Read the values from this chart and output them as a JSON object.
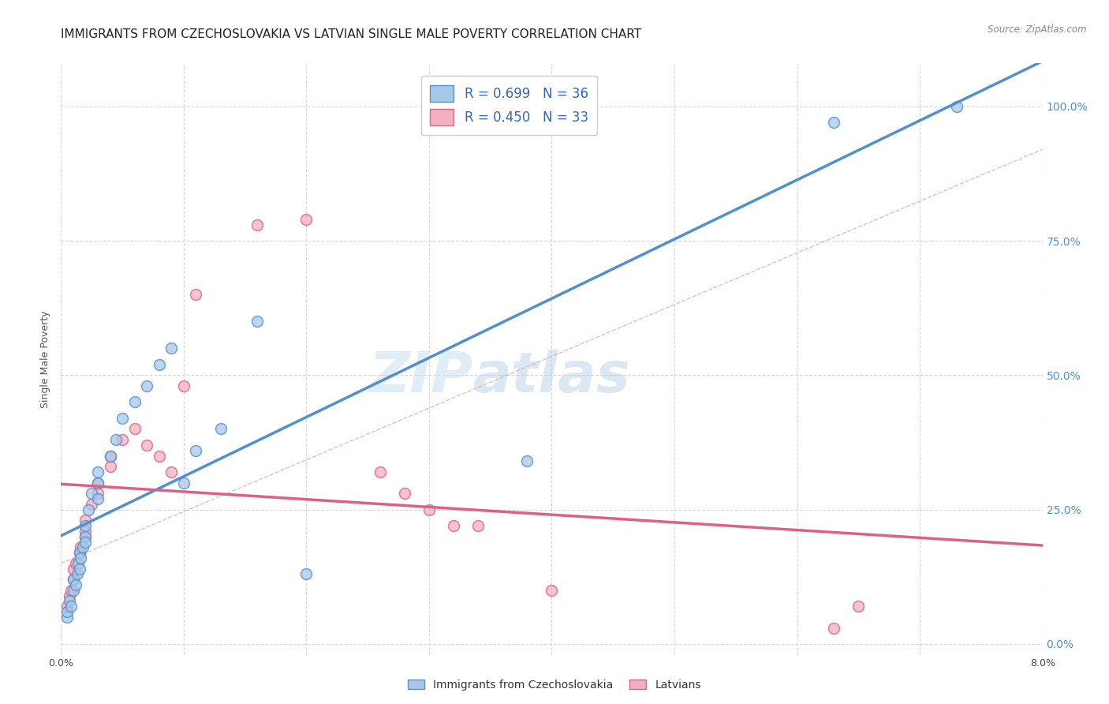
{
  "title": "IMMIGRANTS FROM CZECHOSLOVAKIA VS LATVIAN SINGLE MALE POVERTY CORRELATION CHART",
  "source": "Source: ZipAtlas.com",
  "ylabel": "Single Male Poverty",
  "ytick_labels": [
    "0.0%",
    "25.0%",
    "50.0%",
    "75.0%",
    "100.0%"
  ],
  "ytick_values": [
    0.0,
    0.25,
    0.5,
    0.75,
    1.0
  ],
  "legend_label1": "Immigrants from Czechoslovakia",
  "legend_label2": "Latvians",
  "R1": 0.699,
  "N1": 36,
  "R2": 0.45,
  "N2": 33,
  "color1": "#a8c8e8",
  "color2": "#f4b0c0",
  "line_color1": "#5090d0",
  "line_color2": "#e06080",
  "watermark_zip": "ZIP",
  "watermark_atlas": "atlas",
  "background_color": "#ffffff",
  "xmin": 0.0,
  "xmax": 0.08,
  "ymin": -0.02,
  "ymax": 1.08,
  "scatter1_x": [
    0.0005,
    0.0005,
    0.0007,
    0.0008,
    0.001,
    0.001,
    0.0012,
    0.0013,
    0.0014,
    0.0015,
    0.0015,
    0.0016,
    0.0018,
    0.002,
    0.002,
    0.002,
    0.0022,
    0.0025,
    0.003,
    0.003,
    0.003,
    0.004,
    0.0045,
    0.005,
    0.006,
    0.007,
    0.008,
    0.009,
    0.01,
    0.011,
    0.013,
    0.016,
    0.02,
    0.038,
    0.063,
    0.073
  ],
  "scatter1_y": [
    0.05,
    0.06,
    0.08,
    0.07,
    0.1,
    0.12,
    0.11,
    0.13,
    0.15,
    0.14,
    0.17,
    0.16,
    0.18,
    0.2,
    0.22,
    0.19,
    0.25,
    0.28,
    0.3,
    0.27,
    0.32,
    0.35,
    0.38,
    0.42,
    0.45,
    0.48,
    0.52,
    0.55,
    0.3,
    0.36,
    0.4,
    0.6,
    0.13,
    0.34,
    0.97,
    1.0
  ],
  "scatter2_x": [
    0.0005,
    0.0007,
    0.0008,
    0.001,
    0.001,
    0.0012,
    0.0015,
    0.0016,
    0.002,
    0.002,
    0.002,
    0.0025,
    0.003,
    0.003,
    0.004,
    0.004,
    0.005,
    0.006,
    0.007,
    0.008,
    0.009,
    0.01,
    0.011,
    0.016,
    0.02,
    0.026,
    0.028,
    0.03,
    0.032,
    0.034,
    0.04,
    0.063,
    0.065
  ],
  "scatter2_y": [
    0.07,
    0.09,
    0.1,
    0.12,
    0.14,
    0.15,
    0.17,
    0.18,
    0.2,
    0.21,
    0.23,
    0.26,
    0.28,
    0.3,
    0.33,
    0.35,
    0.38,
    0.4,
    0.37,
    0.35,
    0.32,
    0.48,
    0.65,
    0.78,
    0.79,
    0.32,
    0.28,
    0.25,
    0.22,
    0.22,
    0.1,
    0.03,
    0.07
  ],
  "grid_color": "#d8d8e4",
  "grid_linestyle": "--",
  "title_fontsize": 11,
  "axis_label_fontsize": 9,
  "tick_fontsize": 9,
  "xtick_positions": [
    0.0,
    0.01,
    0.02,
    0.03,
    0.04,
    0.05,
    0.06,
    0.07,
    0.08
  ],
  "xtick_labels_show": [
    "0.0%",
    "",
    "",
    "",
    "",
    "",
    "",
    "",
    "8.0%"
  ]
}
